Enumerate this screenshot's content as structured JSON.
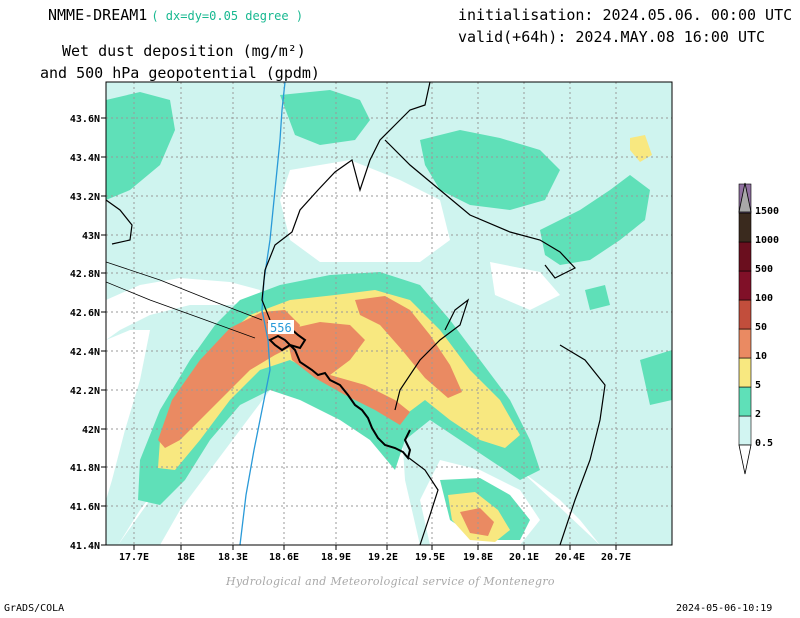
{
  "header": {
    "model": "NMME-DREAM1",
    "resolution": "( dx=dy=0.05 degree )",
    "init": "initialisation: 2024.05.06. 00:00 UTC",
    "valid": "valid(+64h): 2024.MAY.08 16:00 UTC",
    "variable_line1": "Wet dust deposition (mg/m²)",
    "variable_line2": "and 500 hPa geopotential (gpdm)"
  },
  "footer": {
    "credit": "Hydrological and Meteorological service of Montenegro",
    "software": "GrADS/COLA",
    "timestamp": "2024-05-06-10:19"
  },
  "map": {
    "x_ticks": [
      "17.7E",
      "18E",
      "18.3E",
      "18.6E",
      "18.9E",
      "19.2E",
      "19.5E",
      "19.8E",
      "20.1E",
      "20.4E",
      "20.7E"
    ],
    "y_ticks": [
      "41.4N",
      "41.6N",
      "41.8N",
      "42N",
      "42.2N",
      "42.4N",
      "42.6N",
      "42.8N",
      "43N",
      "43.2N",
      "43.4N",
      "43.6N"
    ],
    "contour_label": "556",
    "colors": {
      "c0_5": "#cff4ef",
      "c2": "#5fe0b8",
      "c5": "#f8e880",
      "c10": "#ea8a62",
      "border": "#000000",
      "coast": "#000000",
      "contour": "#2a9ad8"
    }
  },
  "legend": {
    "levels": [
      {
        "label": "0.5",
        "color": "#d2f5f2"
      },
      {
        "label": "2",
        "color": "#5fe0b8"
      },
      {
        "label": "5",
        "color": "#f8e880"
      },
      {
        "label": "10",
        "color": "#ea8a62"
      },
      {
        "label": "50",
        "color": "#c24e3c"
      },
      {
        "label": "100",
        "color": "#801028"
      },
      {
        "label": "500",
        "color": "#6a0e1e"
      },
      {
        "label": "1000",
        "color": "#3a2a1e"
      },
      {
        "label": "1500",
        "color": "#9070a0"
      }
    ],
    "top_color": "#a8a8a8"
  }
}
